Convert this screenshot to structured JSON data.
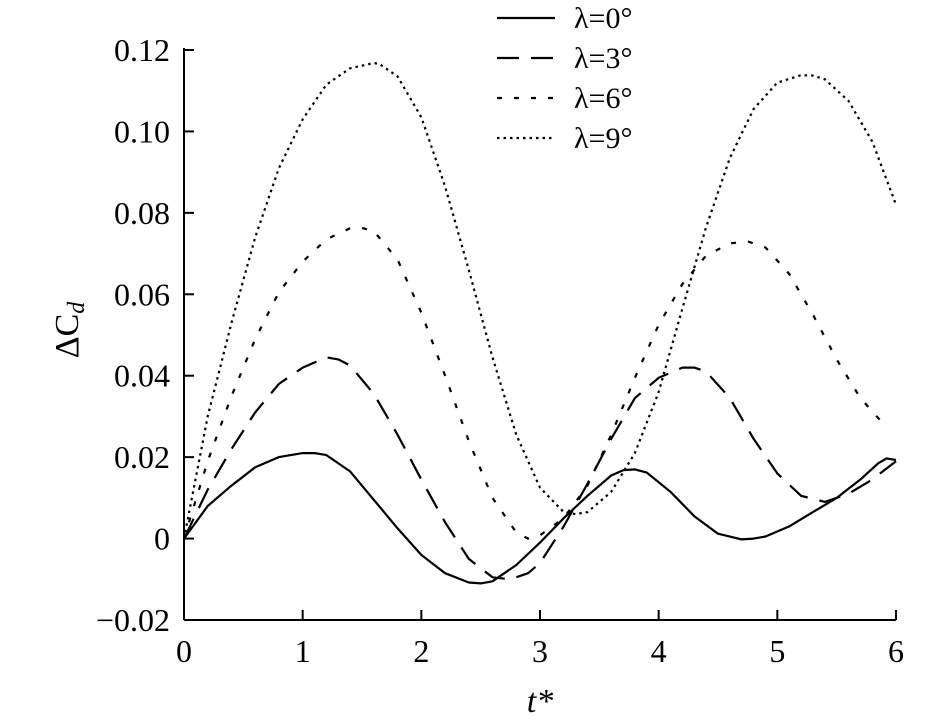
{
  "chart_data": {
    "type": "line",
    "xlabel": "t*",
    "ylabel_base": "ΔC",
    "ylabel_sub": "d",
    "xlim": [
      0,
      6
    ],
    "ylim": [
      -0.02,
      0.12
    ],
    "xticks": [
      {
        "value": 0,
        "label": "0"
      },
      {
        "value": 1,
        "label": "1"
      },
      {
        "value": 2,
        "label": "2"
      },
      {
        "value": 3,
        "label": "3"
      },
      {
        "value": 4,
        "label": "4"
      },
      {
        "value": 5,
        "label": "5"
      },
      {
        "value": 6,
        "label": "6"
      }
    ],
    "yticks": [
      {
        "value": -0.02,
        "label": "−0.02"
      },
      {
        "value": 0,
        "label": "0"
      },
      {
        "value": 0.02,
        "label": "0.02"
      },
      {
        "value": 0.04,
        "label": "0.04"
      },
      {
        "value": 0.06,
        "label": "0.06"
      },
      {
        "value": 0.08,
        "label": "0.08"
      },
      {
        "value": 0.1,
        "label": "0.10"
      },
      {
        "value": 0.12,
        "label": "0.12"
      }
    ],
    "grid": false,
    "legend_position": "top-center",
    "series": [
      {
        "name": "λ=0°",
        "dash": "solid",
        "x": [
          0,
          0.2,
          0.4,
          0.6,
          0.8,
          1.0,
          1.1,
          1.2,
          1.4,
          1.6,
          1.8,
          2.0,
          2.2,
          2.4,
          2.5,
          2.6,
          2.8,
          3.0,
          3.2,
          3.4,
          3.6,
          3.7,
          3.8,
          3.9,
          4.1,
          4.3,
          4.5,
          4.7,
          4.8,
          4.9,
          5.1,
          5.3,
          5.5,
          5.7,
          5.85,
          5.92,
          6.0
        ],
        "y": [
          0,
          0.008,
          0.013,
          0.0175,
          0.02,
          0.021,
          0.021,
          0.0205,
          0.0165,
          0.0095,
          0.0025,
          -0.004,
          -0.0085,
          -0.0108,
          -0.011,
          -0.0105,
          -0.0065,
          -0.001,
          0.005,
          0.0105,
          0.0155,
          0.0168,
          0.017,
          0.0162,
          0.0115,
          0.0055,
          0.0012,
          -0.0002,
          0.0,
          0.0005,
          0.003,
          0.0065,
          0.01,
          0.0145,
          0.0185,
          0.0197,
          0.0193
        ]
      },
      {
        "name": "λ=3°",
        "dash": "long-dash",
        "x": [
          0,
          0.2,
          0.4,
          0.6,
          0.8,
          1.0,
          1.2,
          1.3,
          1.4,
          1.6,
          1.8,
          2.0,
          2.2,
          2.4,
          2.6,
          2.75,
          2.9,
          3.0,
          3.2,
          3.4,
          3.6,
          3.8,
          4.0,
          4.2,
          4.3,
          4.4,
          4.6,
          4.8,
          5.0,
          5.2,
          5.4,
          5.6,
          5.8,
          6.0
        ],
        "y": [
          0,
          0.012,
          0.022,
          0.031,
          0.038,
          0.042,
          0.0445,
          0.044,
          0.0425,
          0.0355,
          0.0255,
          0.0145,
          0.004,
          -0.005,
          -0.0095,
          -0.01,
          -0.0085,
          -0.006,
          0.003,
          0.0135,
          0.0245,
          0.0345,
          0.0395,
          0.042,
          0.042,
          0.041,
          0.0345,
          0.0245,
          0.016,
          0.0105,
          0.009,
          0.011,
          0.0145,
          0.019
        ]
      },
      {
        "name": "λ=6°",
        "dash": "dashed",
        "x": [
          0,
          0.2,
          0.4,
          0.6,
          0.8,
          1.0,
          1.2,
          1.4,
          1.5,
          1.6,
          1.8,
          2.0,
          2.2,
          2.4,
          2.6,
          2.8,
          2.9,
          3.0,
          3.2,
          3.4,
          3.6,
          3.8,
          4.0,
          4.2,
          4.4,
          4.6,
          4.75,
          4.9,
          5.1,
          5.3,
          5.5,
          5.7,
          5.9
        ],
        "y": [
          0,
          0.019,
          0.035,
          0.049,
          0.0605,
          0.068,
          0.0735,
          0.0762,
          0.0763,
          0.0755,
          0.0685,
          0.0555,
          0.04,
          0.024,
          0.01,
          0.0015,
          0.0,
          0.0008,
          0.005,
          0.013,
          0.0255,
          0.0395,
          0.0525,
          0.0625,
          0.0695,
          0.0725,
          0.073,
          0.0715,
          0.065,
          0.055,
          0.044,
          0.0345,
          0.028
        ]
      },
      {
        "name": "λ=9°",
        "dash": "dotted",
        "x": [
          0,
          0.2,
          0.4,
          0.6,
          0.8,
          1.0,
          1.2,
          1.4,
          1.6,
          1.65,
          1.8,
          2.0,
          2.2,
          2.4,
          2.6,
          2.8,
          3.0,
          3.2,
          3.3,
          3.4,
          3.6,
          3.8,
          4.0,
          4.2,
          4.4,
          4.6,
          4.8,
          5.0,
          5.2,
          5.3,
          5.4,
          5.6,
          5.8,
          6.0
        ],
        "y": [
          0,
          0.03,
          0.053,
          0.074,
          0.091,
          0.103,
          0.1115,
          0.1155,
          0.1168,
          0.1165,
          0.1135,
          0.1035,
          0.0865,
          0.066,
          0.0445,
          0.0255,
          0.0125,
          0.0065,
          0.006,
          0.0065,
          0.0115,
          0.021,
          0.036,
          0.0565,
          0.0765,
          0.0935,
          0.1055,
          0.112,
          0.1138,
          0.1137,
          0.1128,
          0.1075,
          0.0975,
          0.082
        ]
      }
    ]
  }
}
